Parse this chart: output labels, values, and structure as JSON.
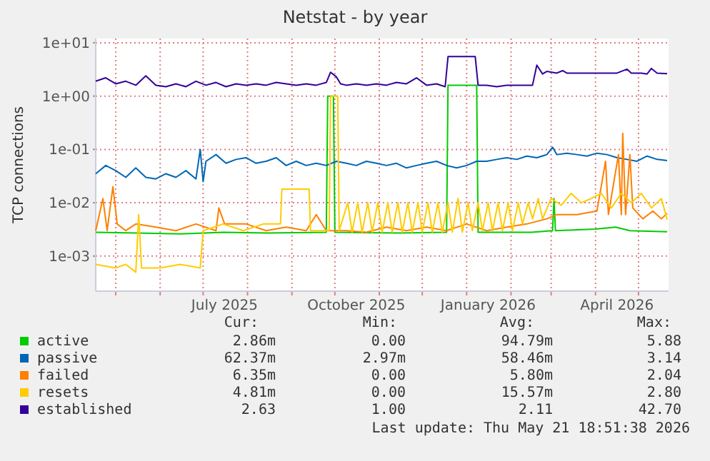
{
  "chart_data": {
    "type": "line",
    "title": "Netstat - by year",
    "ylabel": "TCP connections",
    "log": true,
    "grid": true,
    "legend": "bottom",
    "line_style": "solid",
    "marker": "none",
    "xlim": [
      "2025-04-17",
      "2026-05-22"
    ],
    "xticks": [
      {
        "value": "2025-05-01",
        "label": null
      },
      {
        "value": "2025-06-01",
        "label": null
      },
      {
        "value": "2025-07-01",
        "label": null
      },
      {
        "value": "2025-07-16",
        "label": "July 2025"
      },
      {
        "value": "2025-08-01",
        "label": null
      },
      {
        "value": "2025-09-01",
        "label": null
      },
      {
        "value": "2025-10-01",
        "label": null
      },
      {
        "value": "2025-10-16",
        "label": "October 2025"
      },
      {
        "value": "2025-11-01",
        "label": null
      },
      {
        "value": "2025-12-01",
        "label": null
      },
      {
        "value": "2026-01-01",
        "label": null
      },
      {
        "value": "2026-01-16",
        "label": "January 2026"
      },
      {
        "value": "2026-02-01",
        "label": null
      },
      {
        "value": "2026-03-01",
        "label": null
      },
      {
        "value": "2026-04-01",
        "label": null
      },
      {
        "value": "2026-04-16",
        "label": "April 2026"
      },
      {
        "value": "2026-05-01",
        "label": null
      }
    ],
    "ylim": [
      0.00022,
      12
    ],
    "yticks": [
      {
        "value": 0.001,
        "label": "1e-03"
      },
      {
        "value": 0.01,
        "label": "1e-02"
      },
      {
        "value": 0.1,
        "label": "1e-01"
      },
      {
        "value": 1,
        "label": "1e+00"
      },
      {
        "value": 10,
        "label": "1e+01"
      }
    ],
    "series": [
      {
        "name": "active",
        "color": "#00cc00",
        "x": [
          "2025-04-17",
          "2025-05-15",
          "2025-06-15",
          "2025-07-15",
          "2025-08-15",
          "2025-09-25",
          "2025-09-26",
          "2025-09-30",
          "2025-10-01",
          "2025-11-15",
          "2025-12-18",
          "2025-12-19",
          "2026-01-08",
          "2026-01-09",
          "2026-02-15",
          "2026-03-02",
          "2026-03-03",
          "2026-03-04",
          "2026-04-01",
          "2026-04-15",
          "2026-04-25",
          "2026-05-21"
        ],
        "values": [
          0.0028,
          0.0027,
          0.0026,
          0.0028,
          0.0027,
          0.0028,
          1.0,
          1.0,
          0.0028,
          0.0027,
          0.0028,
          1.6,
          1.6,
          0.0028,
          0.0028,
          0.003,
          0.012,
          0.003,
          0.0032,
          0.0035,
          0.003,
          0.00286
        ]
      },
      {
        "name": "passive",
        "color": "#0066b3",
        "x": [
          "2025-04-17",
          "2025-04-24",
          "2025-05-01",
          "2025-05-08",
          "2025-05-15",
          "2025-05-22",
          "2025-05-29",
          "2025-06-05",
          "2025-06-12",
          "2025-06-19",
          "2025-06-26",
          "2025-06-29",
          "2025-07-01",
          "2025-07-03",
          "2025-07-10",
          "2025-07-17",
          "2025-07-24",
          "2025-07-31",
          "2025-08-07",
          "2025-08-14",
          "2025-08-21",
          "2025-08-28",
          "2025-09-04",
          "2025-09-11",
          "2025-09-18",
          "2025-09-25",
          "2025-10-02",
          "2025-10-09",
          "2025-10-16",
          "2025-10-23",
          "2025-10-30",
          "2025-11-06",
          "2025-11-13",
          "2025-11-20",
          "2025-11-27",
          "2025-12-04",
          "2025-12-11",
          "2025-12-18",
          "2025-12-25",
          "2026-01-01",
          "2026-01-08",
          "2026-01-15",
          "2026-01-22",
          "2026-01-29",
          "2026-02-05",
          "2026-02-12",
          "2026-02-19",
          "2026-02-26",
          "2026-03-02",
          "2026-03-05",
          "2026-03-12",
          "2026-03-19",
          "2026-03-26",
          "2026-04-02",
          "2026-04-09",
          "2026-04-16",
          "2026-04-23",
          "2026-04-30",
          "2026-05-07",
          "2026-05-14",
          "2026-05-21"
        ],
        "values": [
          0.035,
          0.05,
          0.04,
          0.03,
          0.045,
          0.03,
          0.028,
          0.035,
          0.03,
          0.04,
          0.028,
          0.1,
          0.025,
          0.06,
          0.08,
          0.055,
          0.065,
          0.07,
          0.055,
          0.06,
          0.07,
          0.05,
          0.06,
          0.05,
          0.055,
          0.05,
          0.06,
          0.055,
          0.05,
          0.06,
          0.055,
          0.05,
          0.055,
          0.045,
          0.05,
          0.055,
          0.06,
          0.05,
          0.045,
          0.05,
          0.06,
          0.06,
          0.065,
          0.07,
          0.065,
          0.075,
          0.07,
          0.08,
          0.11,
          0.08,
          0.085,
          0.08,
          0.075,
          0.085,
          0.08,
          0.07,
          0.065,
          0.06,
          0.075,
          0.065,
          0.062
        ]
      },
      {
        "name": "failed",
        "color": "#ff8000",
        "x": [
          "2025-04-17",
          "2025-04-22",
          "2025-04-25",
          "2025-04-29",
          "2025-05-02",
          "2025-05-08",
          "2025-05-15",
          "2025-05-29",
          "2025-06-12",
          "2025-06-26",
          "2025-07-10",
          "2025-07-12",
          "2025-07-16",
          "2025-07-31",
          "2025-08-14",
          "2025-08-28",
          "2025-09-11",
          "2025-09-18",
          "2025-09-25",
          "2025-10-09",
          "2025-10-23",
          "2025-11-06",
          "2025-11-20",
          "2025-12-04",
          "2025-12-18",
          "2026-01-01",
          "2026-01-15",
          "2026-01-29",
          "2026-02-12",
          "2026-02-26",
          "2026-03-05",
          "2026-03-19",
          "2026-04-02",
          "2026-04-08",
          "2026-04-10",
          "2026-04-17",
          "2026-04-19",
          "2026-04-20",
          "2026-04-22",
          "2026-04-25",
          "2026-04-27",
          "2026-05-04",
          "2026-05-11",
          "2026-05-17",
          "2026-05-21"
        ],
        "values": [
          0.003,
          0.012,
          0.003,
          0.02,
          0.004,
          0.003,
          0.004,
          0.0035,
          0.003,
          0.004,
          0.003,
          0.008,
          0.004,
          0.004,
          0.003,
          0.0035,
          0.003,
          0.006,
          0.003,
          0.003,
          0.0028,
          0.0035,
          0.003,
          0.0035,
          0.003,
          0.004,
          0.003,
          0.0035,
          0.004,
          0.005,
          0.006,
          0.006,
          0.007,
          0.06,
          0.006,
          0.08,
          0.006,
          0.2,
          0.006,
          0.08,
          0.008,
          0.005,
          0.007,
          0.005,
          0.00635
        ]
      },
      {
        "name": "resets",
        "color": "#ffcc00",
        "x": [
          "2025-04-17",
          "2025-05-01",
          "2025-05-08",
          "2025-05-15",
          "2025-05-17",
          "2025-05-19",
          "2025-06-01",
          "2025-06-15",
          "2025-06-29",
          "2025-07-01",
          "2025-07-15",
          "2025-07-29",
          "2025-08-12",
          "2025-08-24",
          "2025-08-25",
          "2025-09-13",
          "2025-09-14",
          "2025-09-27",
          "2025-09-28",
          "2025-10-03",
          "2025-10-04",
          "2025-10-10",
          "2025-10-13",
          "2025-10-17",
          "2025-10-20",
          "2025-10-24",
          "2025-10-27",
          "2025-10-31",
          "2025-11-03",
          "2025-11-07",
          "2025-11-10",
          "2025-11-14",
          "2025-11-17",
          "2025-11-21",
          "2025-11-24",
          "2025-11-28",
          "2025-12-01",
          "2025-12-05",
          "2025-12-08",
          "2025-12-12",
          "2025-12-15",
          "2025-12-19",
          "2025-12-22",
          "2025-12-26",
          "2025-12-29",
          "2026-01-02",
          "2026-01-05",
          "2026-01-09",
          "2026-01-12",
          "2026-01-16",
          "2026-01-19",
          "2026-01-23",
          "2026-01-26",
          "2026-01-30",
          "2026-02-02",
          "2026-02-06",
          "2026-02-09",
          "2026-02-13",
          "2026-02-16",
          "2026-02-20",
          "2026-02-23",
          "2026-03-01",
          "2026-03-08",
          "2026-03-15",
          "2026-03-22",
          "2026-03-29",
          "2026-04-05",
          "2026-04-12",
          "2026-04-19",
          "2026-04-26",
          "2026-05-03",
          "2026-05-10",
          "2026-05-17",
          "2026-05-21"
        ],
        "values": [
          0.0007,
          0.0006,
          0.0007,
          0.0005,
          0.006,
          0.0006,
          0.0006,
          0.0007,
          0.0006,
          0.003,
          0.004,
          0.003,
          0.004,
          0.004,
          0.018,
          0.018,
          0.003,
          0.003,
          1.0,
          1.0,
          0.003,
          0.01,
          0.0028,
          0.01,
          0.0028,
          0.01,
          0.0028,
          0.01,
          0.0028,
          0.01,
          0.0028,
          0.01,
          0.0028,
          0.01,
          0.0028,
          0.01,
          0.0028,
          0.01,
          0.0028,
          0.01,
          0.0028,
          0.01,
          0.0028,
          0.012,
          0.0028,
          0.01,
          0.003,
          0.01,
          0.003,
          0.01,
          0.003,
          0.01,
          0.003,
          0.01,
          0.003,
          0.01,
          0.004,
          0.01,
          0.005,
          0.012,
          0.005,
          0.012,
          0.009,
          0.015,
          0.01,
          0.012,
          0.015,
          0.008,
          0.015,
          0.01,
          0.015,
          0.008,
          0.012,
          0.00481
        ]
      },
      {
        "name": "established",
        "color": "#330099",
        "x": [
          "2025-04-17",
          "2025-04-24",
          "2025-05-01",
          "2025-05-08",
          "2025-05-15",
          "2025-05-22",
          "2025-05-29",
          "2025-06-05",
          "2025-06-12",
          "2025-06-19",
          "2025-06-26",
          "2025-07-03",
          "2025-07-10",
          "2025-07-17",
          "2025-07-24",
          "2025-07-31",
          "2025-08-07",
          "2025-08-14",
          "2025-08-21",
          "2025-08-28",
          "2025-09-04",
          "2025-09-11",
          "2025-09-18",
          "2025-09-25",
          "2025-09-28",
          "2025-10-02",
          "2025-10-05",
          "2025-10-09",
          "2025-10-16",
          "2025-10-23",
          "2025-10-30",
          "2025-11-06",
          "2025-11-13",
          "2025-11-20",
          "2025-11-27",
          "2025-12-04",
          "2025-12-11",
          "2025-12-17",
          "2025-12-19",
          "2026-01-07",
          "2026-01-09",
          "2026-01-15",
          "2026-01-22",
          "2026-01-29",
          "2026-02-05",
          "2026-02-12",
          "2026-02-16",
          "2026-02-19",
          "2026-02-23",
          "2026-02-26",
          "2026-03-05",
          "2026-03-09",
          "2026-03-12",
          "2026-03-19",
          "2026-03-26",
          "2026-04-02",
          "2026-04-09",
          "2026-04-16",
          "2026-04-23",
          "2026-04-26",
          "2026-05-03",
          "2026-05-07",
          "2026-05-10",
          "2026-05-14",
          "2026-05-21"
        ],
        "values": [
          1.9,
          2.2,
          1.7,
          1.9,
          1.6,
          2.4,
          1.6,
          1.5,
          1.7,
          1.5,
          1.9,
          1.6,
          1.8,
          1.5,
          1.7,
          1.6,
          1.7,
          1.6,
          1.8,
          1.7,
          1.6,
          1.7,
          1.6,
          1.8,
          2.8,
          2.3,
          1.7,
          1.6,
          1.7,
          1.6,
          1.7,
          1.6,
          1.8,
          1.7,
          2.2,
          1.6,
          1.7,
          1.5,
          5.5,
          5.5,
          1.6,
          1.6,
          1.5,
          1.6,
          1.6,
          1.6,
          1.6,
          3.8,
          2.6,
          2.9,
          2.7,
          3.0,
          2.7,
          2.7,
          2.7,
          2.7,
          2.7,
          2.7,
          3.2,
          2.7,
          2.7,
          2.6,
          3.3,
          2.7,
          2.63
        ]
      }
    ],
    "annotations": [
      "Cur:",
      "Min:",
      "Avg:",
      "Max:",
      "2.86m",
      "0.00",
      "94.79m",
      "5.88",
      "62.37m",
      "2.97m",
      "58.46m",
      "3.14",
      "6.35m",
      "0.00",
      "5.80m",
      "2.04",
      "4.81m",
      "0.00",
      "15.57m",
      "2.80",
      "2.63",
      "1.00",
      "2.11",
      "42.70",
      "Last update: Thu May 21 18:51:38 2026"
    ]
  }
}
